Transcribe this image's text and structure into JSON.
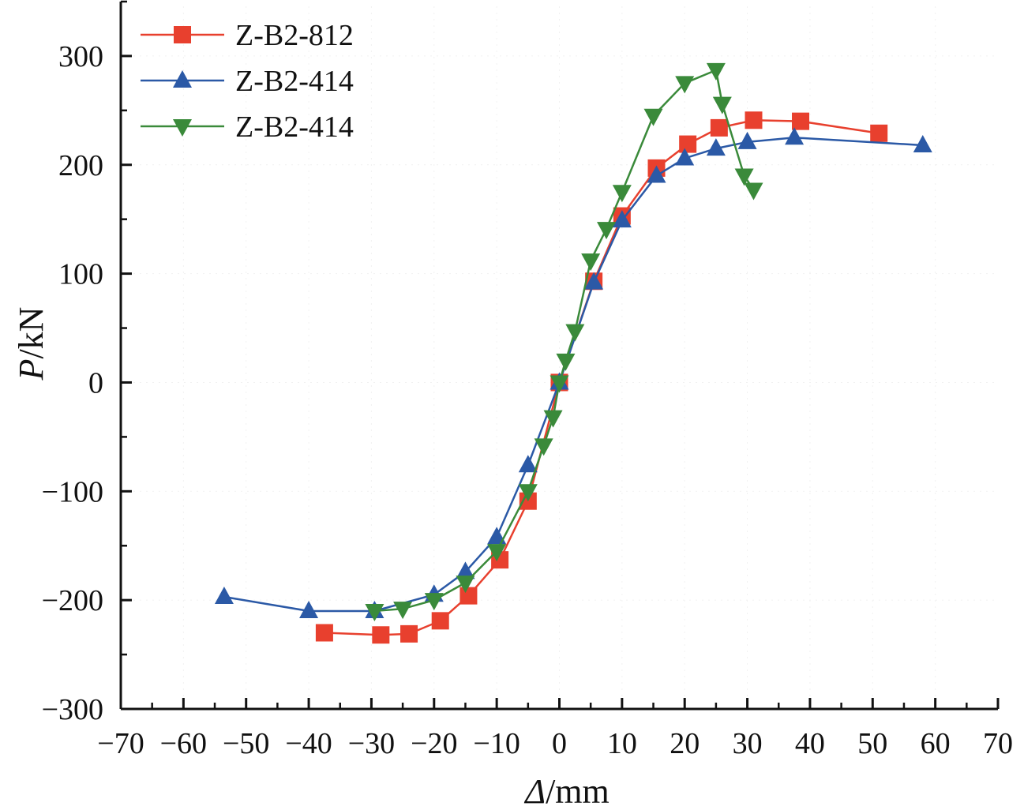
{
  "chart_data": {
    "type": "line",
    "title": "",
    "xlabel_symbol": "Δ",
    "xlabel_unit": "/mm",
    "ylabel_symbol": "P",
    "ylabel_unit": "/kN",
    "xlim": [
      -70,
      70
    ],
    "ylim": [
      -300,
      350
    ],
    "x_ticks": [
      -70,
      -60,
      -50,
      -40,
      -30,
      -20,
      -10,
      0,
      10,
      20,
      30,
      40,
      50,
      60,
      70
    ],
    "x_tick_labels": [
      "−70",
      "−60",
      "−50",
      "−40",
      "−30",
      "−20",
      "−10",
      "0",
      "10",
      "20",
      "30",
      "40",
      "50",
      "60",
      "70"
    ],
    "y_ticks": [
      -300,
      -200,
      -100,
      0,
      100,
      200,
      300
    ],
    "y_tick_labels": [
      "−300",
      "−200",
      "−100",
      "0",
      "100",
      "200",
      "300"
    ],
    "grid": false,
    "legend_position": "top-left",
    "series": [
      {
        "name": "Z-B2-812",
        "marker": "square",
        "color": "#e8402e",
        "points": [
          [
            -37.5,
            -230
          ],
          [
            -28.5,
            -232
          ],
          [
            -24,
            -231
          ],
          [
            -19,
            -219
          ],
          [
            -14.5,
            -196
          ],
          [
            -9.5,
            -163
          ],
          [
            -5,
            -109
          ],
          [
            0,
            0
          ],
          [
            5.5,
            93
          ],
          [
            10,
            153
          ],
          [
            15.5,
            197
          ],
          [
            20.5,
            219
          ],
          [
            25.5,
            234
          ],
          [
            31,
            241
          ],
          [
            38.5,
            240
          ],
          [
            51,
            229
          ]
        ]
      },
      {
        "name": "Z-B2-414",
        "marker": "triangle-up",
        "color": "#2b59a6",
        "points": [
          [
            -53.5,
            -197
          ],
          [
            -40,
            -210
          ],
          [
            -29.5,
            -210
          ],
          [
            -20,
            -195
          ],
          [
            -15,
            -174
          ],
          [
            -10,
            -142
          ],
          [
            -5,
            -76
          ],
          [
            0,
            0
          ],
          [
            5.5,
            92
          ],
          [
            10,
            149
          ],
          [
            15.5,
            190
          ],
          [
            20,
            206
          ],
          [
            25,
            215
          ],
          [
            30,
            221
          ],
          [
            37.5,
            225
          ],
          [
            58,
            218
          ]
        ]
      },
      {
        "name": "Z-B2-414",
        "marker": "triangle-down",
        "color": "#3a8a3a",
        "points": [
          [
            -29.5,
            -210
          ],
          [
            -25,
            -208
          ],
          [
            -20,
            -200
          ],
          [
            -15,
            -184
          ],
          [
            -10,
            -155
          ],
          [
            -5,
            -100
          ],
          [
            -2.5,
            -58
          ],
          [
            -1,
            -32
          ],
          [
            0,
            0
          ],
          [
            1,
            20
          ],
          [
            2.5,
            47
          ],
          [
            5,
            112
          ],
          [
            7.5,
            141
          ],
          [
            10,
            175
          ],
          [
            15,
            245
          ],
          [
            20,
            275
          ],
          [
            25,
            287
          ],
          [
            26,
            256
          ],
          [
            29.5,
            190
          ],
          [
            31,
            177
          ]
        ]
      }
    ]
  }
}
